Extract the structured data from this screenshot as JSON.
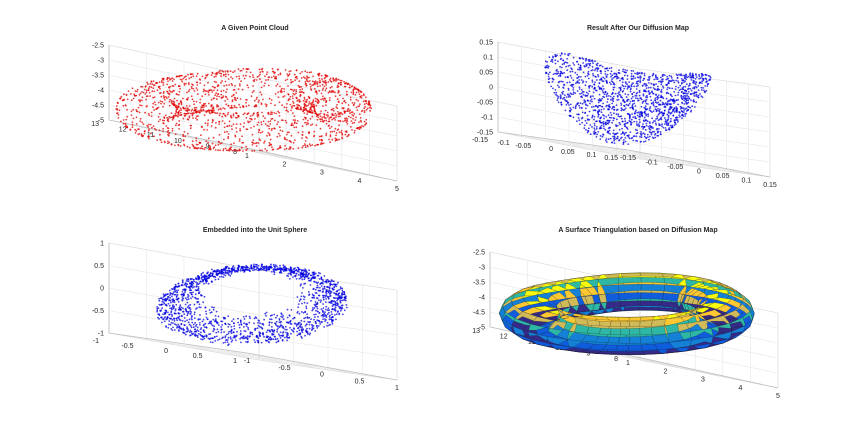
{
  "chart_data": [
    {
      "type": "scatter",
      "title": "A Given Point Cloud",
      "xlabel": "",
      "ylabel": "",
      "zlabel": "",
      "xlim": [
        1,
        5.5
      ],
      "ylim": [
        8,
        13
      ],
      "zlim": [
        -5,
        -2.2
      ],
      "x_ticks": [
        "1",
        "2",
        "3",
        "4",
        "5"
      ],
      "y_ticks": [
        "8",
        "9",
        "10",
        "11",
        "12",
        "13"
      ],
      "z_ticks": [
        "-2.5",
        "-3",
        "-3.5",
        "-4",
        "-4.5",
        "-5"
      ],
      "grid": true,
      "color": "#e00000",
      "marker": "point"
    },
    {
      "type": "scatter",
      "title": "Result After Our Diffusion Map",
      "xlabel": "",
      "ylabel": "",
      "zlabel": "",
      "xlim": [
        -0.15,
        0.15
      ],
      "ylim": [
        -0.15,
        0.15
      ],
      "zlim": [
        -0.15,
        0.15
      ],
      "x_ticks": [
        "-0.15",
        "-0.1",
        "-0.05",
        "0",
        "0.05",
        "0.1",
        "0.15"
      ],
      "y_ticks": [
        "0.15",
        "0.1",
        "0.05",
        "0",
        "-0.05",
        "-0.1",
        "-0.15"
      ],
      "z_ticks": [
        "0.15",
        "0.1",
        "0.05",
        "0",
        "-0.05",
        "-0.1",
        "-0.15"
      ],
      "grid": true,
      "color": "#0000e0",
      "marker": "point"
    },
    {
      "type": "scatter",
      "title": "Embedded into the Unit Sphere",
      "xlabel": "",
      "ylabel": "",
      "zlabel": "",
      "xlim": [
        -1,
        1
      ],
      "ylim": [
        -1,
        1
      ],
      "zlim": [
        -1,
        1
      ],
      "x_ticks": [
        "-1",
        "-0.5",
        "0",
        "0.5",
        "1"
      ],
      "y_ticks": [
        "1",
        "0.5",
        "0",
        "-0.5",
        "-1"
      ],
      "z_ticks": [
        "1",
        "0.5",
        "0",
        "-0.5",
        "-1"
      ],
      "grid": true,
      "color": "#0000e0",
      "marker": "point"
    },
    {
      "type": "surface",
      "title": "A Surface Triangulation based on Diffusion Map",
      "xlabel": "",
      "ylabel": "",
      "zlabel": "",
      "xlim": [
        1,
        5.5
      ],
      "ylim": [
        8,
        13
      ],
      "zlim": [
        -5,
        -2.2
      ],
      "x_ticks": [
        "1",
        "2",
        "3",
        "4",
        "5"
      ],
      "y_ticks": [
        "8",
        "9",
        "10",
        "11",
        "12",
        "13"
      ],
      "z_ticks": [
        "-2.5",
        "-3",
        "-3.5",
        "-4",
        "-4.5",
        "-5"
      ],
      "grid": true,
      "colormap": "parula",
      "edge_color": "#000000"
    }
  ]
}
